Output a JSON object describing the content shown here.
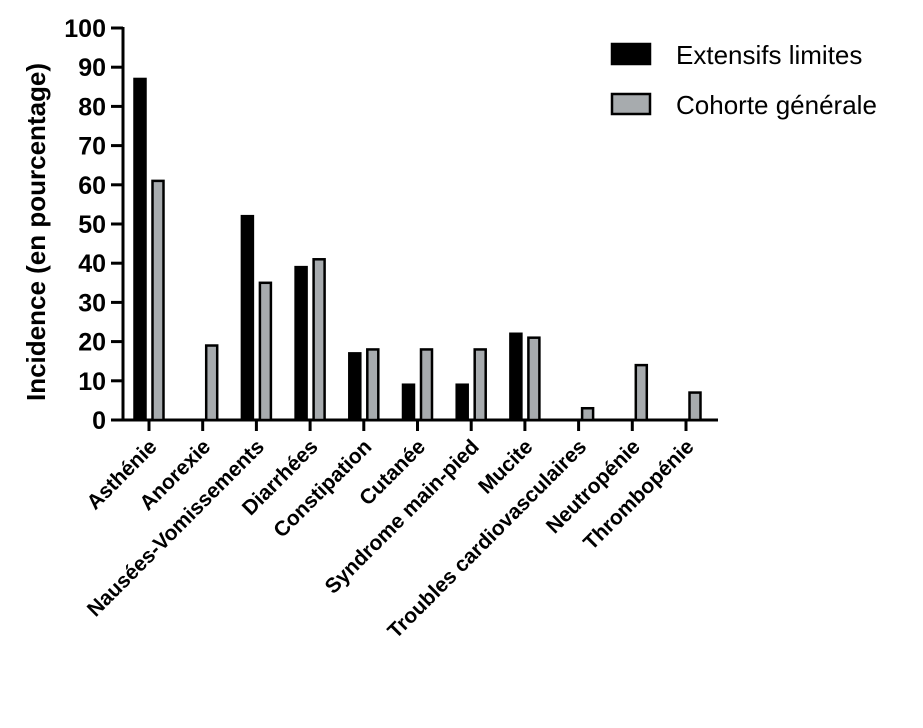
{
  "chart_data": {
    "type": "bar",
    "title": "",
    "xlabel": "",
    "ylabel": "Incidence (en pourcentage)",
    "ylim": [
      0,
      100
    ],
    "yticks": [
      0,
      10,
      20,
      30,
      40,
      50,
      60,
      70,
      80,
      90,
      100
    ],
    "grid": false,
    "legend_position": "top-right",
    "categories": [
      "Asthénie",
      "Anorexie",
      "Nausées-Vomissements",
      "Diarrhées",
      "Constipation",
      "Cutanée",
      "Syndrome main-pied",
      "Mucite",
      "Troubles cardiovasculaires",
      "Neutropénie",
      "Thrombopénie"
    ],
    "series": [
      {
        "name": "Extensifs limites",
        "color": "#000000",
        "values": [
          87,
          0,
          52,
          39,
          17,
          9,
          9,
          22,
          0,
          0,
          0
        ]
      },
      {
        "name": "Cohorte générale",
        "color": "#a7abae",
        "values": [
          61,
          19,
          35,
          41,
          18,
          18,
          18,
          21,
          3,
          14,
          7
        ]
      }
    ]
  }
}
